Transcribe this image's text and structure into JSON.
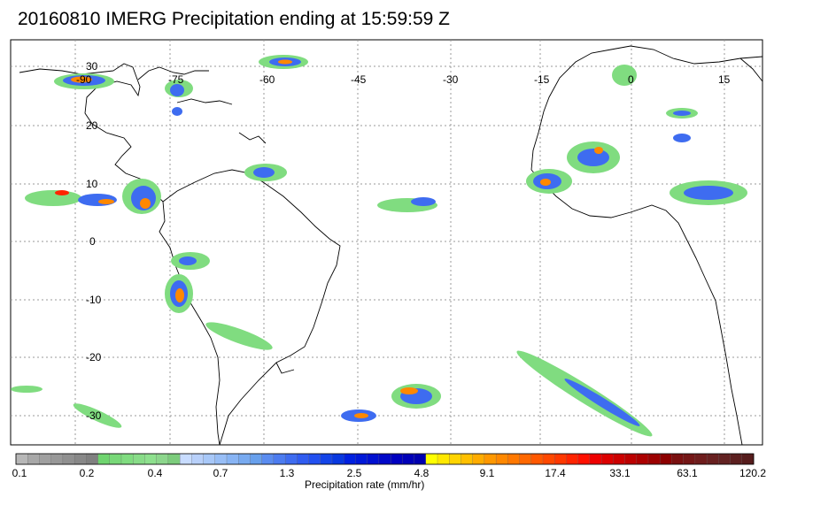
{
  "title": "20160810 IMERG Precipitation ending at 15:59:59 Z",
  "map": {
    "lon_labels": [
      "-60",
      "-45",
      "-30",
      "-15",
      "0",
      "15"
    ],
    "top_lon_labels_overlapped": [
      "-90",
      "-75"
    ],
    "lat_labels": [
      "30",
      "20",
      "10",
      "0",
      "-10",
      "-20",
      "-30"
    ],
    "gridlines": "dotted"
  },
  "colorbar": {
    "title": "Precipitation rate (mm/hr)",
    "tick_labels": [
      "0.1",
      "0.2",
      "0.4",
      "0.7",
      "1.3",
      "2.5",
      "4.8",
      "9.1",
      "17.4",
      "33.1",
      "63.1",
      "120.2"
    ],
    "colors": [
      "#b7b7b7",
      "#a8a8a8",
      "#a0a0a0",
      "#989898",
      "#909090",
      "#888888",
      "#808080",
      "#6fd46f",
      "#78d878",
      "#80dc80",
      "#88dc88",
      "#8ee08e",
      "#8cd68c",
      "#7ccc7c",
      "#c8dcff",
      "#b8d0fa",
      "#a8c8f8",
      "#98bef6",
      "#88b4f4",
      "#78aaf0",
      "#68a0ec",
      "#5a8cf0",
      "#4c7cf0",
      "#3e6cf0",
      "#305cf0",
      "#2250f0",
      "#1444e8",
      "#0838e0",
      "#0020e0",
      "#0018d8",
      "#0010d0",
      "#0008c8",
      "#0000c0",
      "#0000b8",
      "#0000b0",
      "#ffff00",
      "#ffe800",
      "#ffd400",
      "#ffc000",
      "#ffac00",
      "#ff9800",
      "#ff8800",
      "#ff7800",
      "#ff6800",
      "#ff5800",
      "#ff4800",
      "#ff3800",
      "#ff2400",
      "#ff1000",
      "#ee0000",
      "#dc0000",
      "#cc0000",
      "#bc0000",
      "#ac0000",
      "#9c0000",
      "#8c0000",
      "#7a1010",
      "#741616",
      "#6e1c1c",
      "#682020",
      "#622222",
      "#5c2020",
      "#561c1c"
    ]
  },
  "colors": {
    "coastline": "#000000",
    "grid": "#888888",
    "light_precip": "#80dc80",
    "moderate_precip": "#3e6cf0",
    "heavy_precip": "#0000c0",
    "intense_precip": "#ff8800"
  }
}
